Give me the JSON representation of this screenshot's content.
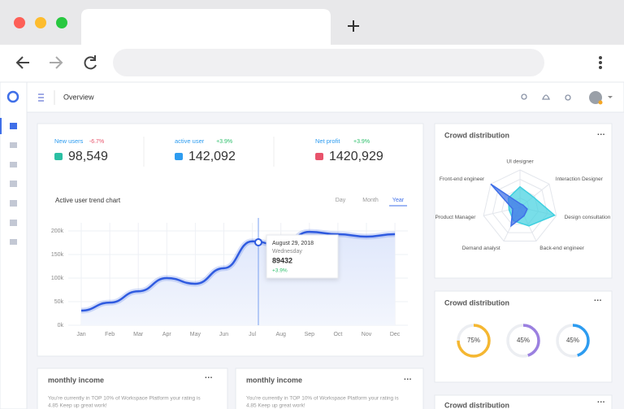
{
  "header": {
    "title": "Overview"
  },
  "stats": [
    {
      "label": "New users",
      "change": "-6.7%",
      "value": "98,549"
    },
    {
      "label": "active user",
      "change": "+3.9%",
      "value": "142,092"
    },
    {
      "label": "Net profit",
      "change": "+3.9%",
      "value": "1420,929"
    }
  ],
  "trend_chart": {
    "type": "line",
    "title": "Active user trend chart",
    "tabs": [
      "Day",
      "Month",
      "Year"
    ],
    "active_tab": 2,
    "categories": [
      "Jan",
      "Feb",
      "Mar",
      "Apr",
      "May",
      "Jun",
      "Jul",
      "Aug",
      "Sep",
      "Oct",
      "Nov",
      "Dec"
    ],
    "values": [
      31000,
      48000,
      72000,
      100000,
      88000,
      121000,
      178000,
      169000,
      198000,
      193000,
      188000,
      193000
    ],
    "color": "#2f5be0",
    "ylim": [
      0,
      200000
    ],
    "yticks": [
      {
        "value": 0,
        "label": "0k"
      },
      {
        "value": 50000,
        "label": "50k"
      },
      {
        "value": 100000,
        "label": "100k"
      },
      {
        "value": 150000,
        "label": "150k"
      },
      {
        "value": 200000,
        "label": "200k"
      }
    ],
    "grid": true,
    "tooltip": {
      "date": "August 29, 2018",
      "day": "Wednesday",
      "value": "89432",
      "change": "+3.9%"
    }
  },
  "radar_chart": {
    "type": "radar",
    "title": "Crowd distribution",
    "categories": [
      "UI designer",
      "Interaction Designer",
      "Design consultation",
      "Back-end engineer",
      "Demand analyst",
      "Product Manager",
      "Front-end engineer"
    ],
    "rlim": [
      0,
      100
    ],
    "series": [
      {
        "color": "#3fd0e0",
        "values": [
          55,
          45,
          95,
          55,
          40,
          30,
          40
        ]
      },
      {
        "color": "#3f6fe8",
        "values": [
          10,
          10,
          20,
          25,
          55,
          20,
          100
        ]
      }
    ]
  },
  "donut_chart": {
    "type": "donut",
    "title": "Crowd distribution",
    "values": [
      75,
      45,
      45
    ],
    "value_labels": [
      "75%",
      "45%",
      "45%"
    ],
    "colors": [
      "#f5b731",
      "#9b80e0",
      "#2d9cf0"
    ]
  },
  "income_cards": [
    {
      "title": "monthly income",
      "lines": [
        "You're currently in TOP 10% of Workspace Platform your rating is",
        "4.85 Keep up great work!"
      ]
    },
    {
      "title": "monthly income",
      "lines": [
        "You're currently in TOP 10% of Workspace Platform your rating is",
        "4.85 Keep up great work!"
      ]
    }
  ],
  "extra_card": {
    "title": "Crowd distribution"
  }
}
